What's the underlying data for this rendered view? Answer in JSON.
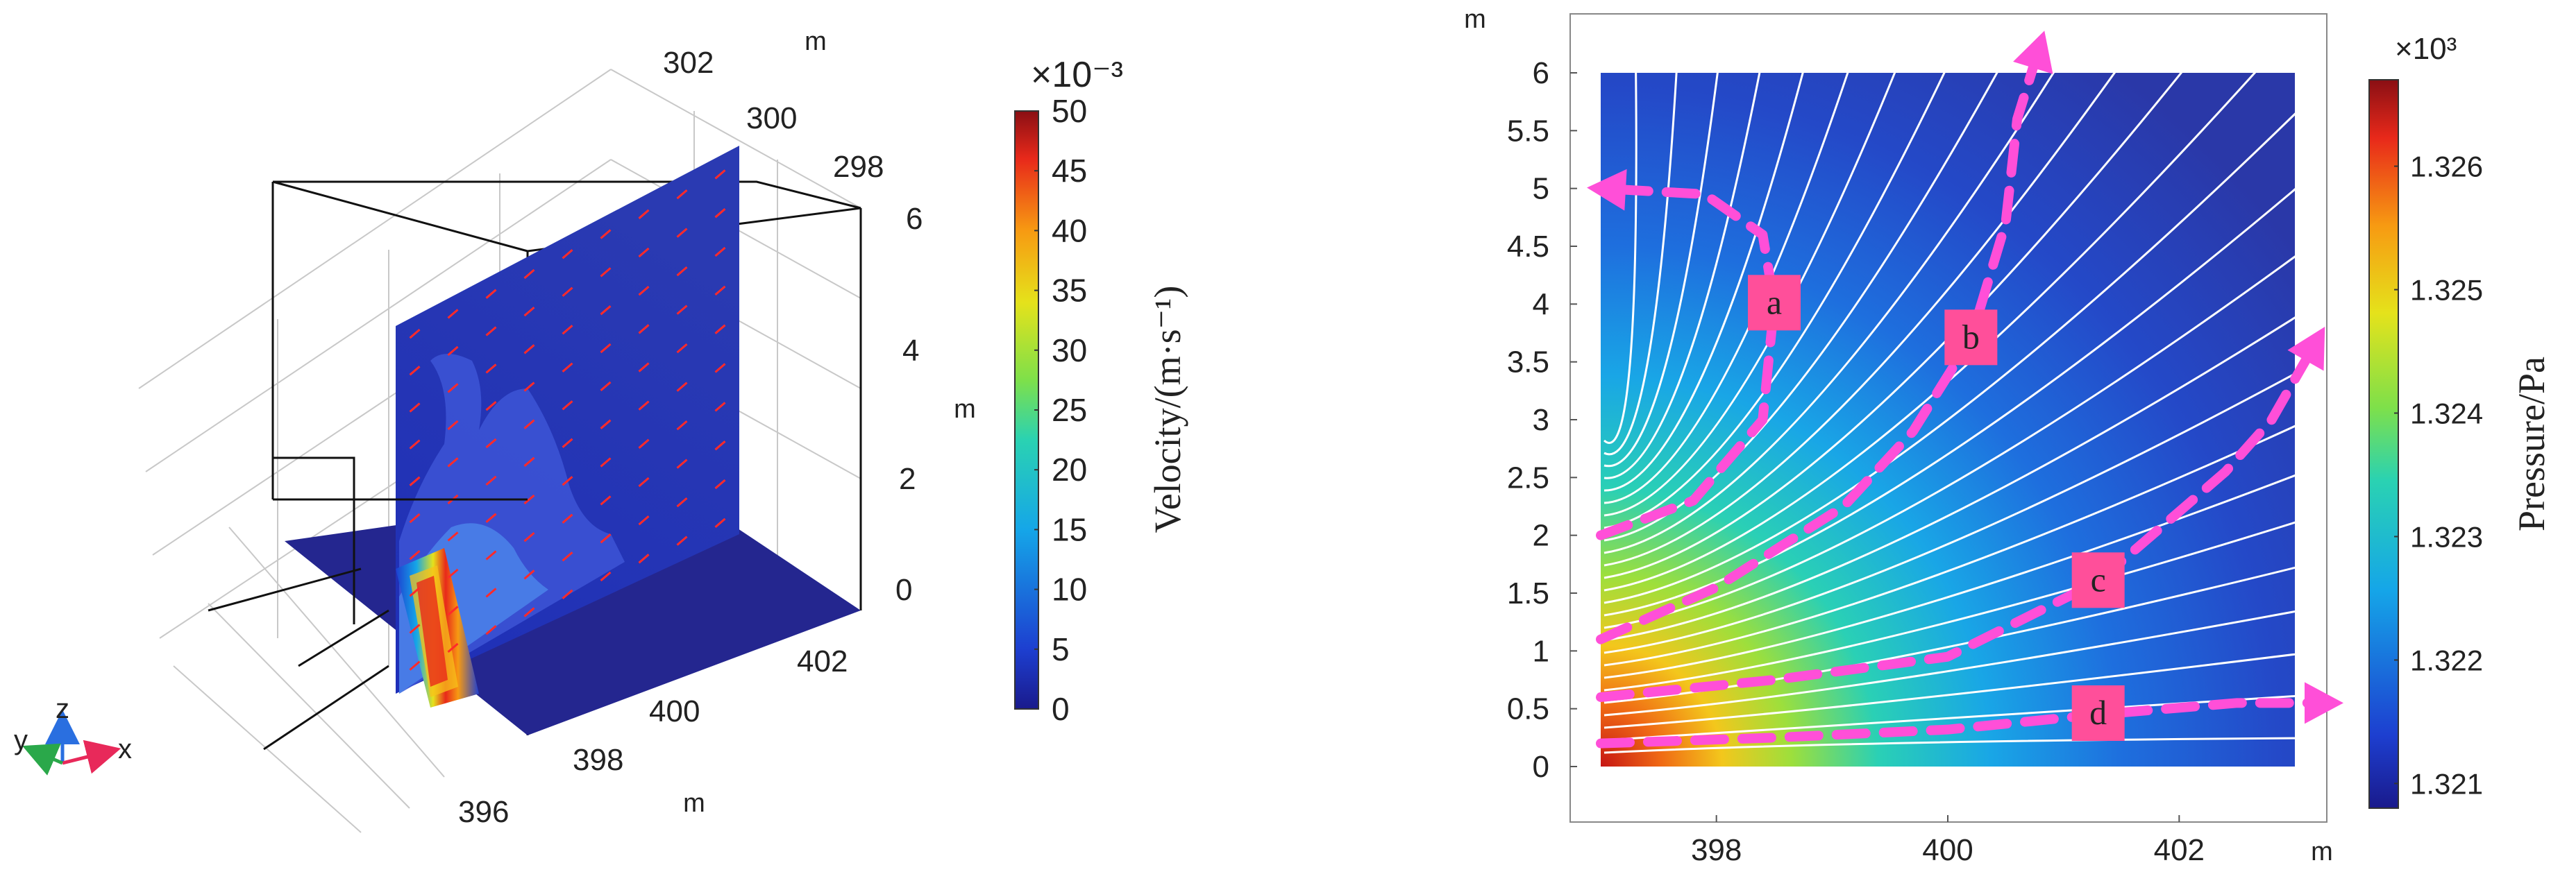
{
  "chart_data": [
    {
      "type": "3d-slice",
      "title": "",
      "x_axis": {
        "unit": "m",
        "ticks": [
          "396",
          "398",
          "400",
          "402"
        ]
      },
      "y_axis": {
        "unit": "m",
        "ticks": [
          "298",
          "300",
          "302"
        ]
      },
      "z_axis": {
        "unit": "m",
        "ticks": [
          "0",
          "2",
          "4",
          "6"
        ]
      },
      "colorbar": {
        "label": "Velocity/(m·s⁻¹)",
        "exponent": "×10⁻³",
        "range": [
          0,
          50
        ],
        "ticks": [
          "0",
          "5",
          "10",
          "15",
          "20",
          "25",
          "30",
          "35",
          "40",
          "45",
          "50"
        ]
      },
      "triad": {
        "x": "x",
        "y": "y",
        "z": "z"
      },
      "arrow_color": "#ff2a2a"
    },
    {
      "type": "contour",
      "title": "",
      "x_axis": {
        "unit": "m",
        "range": [
          396.9,
          403.3
        ],
        "ticks": [
          398,
          400,
          402
        ]
      },
      "y_axis": {
        "unit": "m",
        "range": [
          -0.5,
          6.2
        ],
        "ticks": [
          0,
          0.5,
          1,
          1.5,
          2,
          2.5,
          3,
          3.5,
          4,
          4.5,
          5,
          5.5,
          6
        ]
      },
      "colorbar": {
        "label": "Pressure/Pa",
        "exponent": "×10³",
        "range": [
          1.3208,
          1.3267
        ],
        "ticks": [
          "1.321",
          "1.322",
          "1.323",
          "1.324",
          "1.325",
          "1.326"
        ]
      },
      "paths": [
        {
          "label": "a",
          "points": [
            [
              397.0,
              2.0
            ],
            [
              397.8,
              2.3
            ],
            [
              398.4,
              3.0
            ],
            [
              398.5,
              4.0
            ],
            [
              398.4,
              4.6
            ],
            [
              397.9,
              4.95
            ],
            [
              397.0,
              5.0
            ]
          ]
        },
        {
          "label": "b",
          "points": [
            [
              397.0,
              1.1
            ],
            [
              398.0,
              1.55
            ],
            [
              399.1,
              2.25
            ],
            [
              399.7,
              2.9
            ],
            [
              400.2,
              3.7
            ],
            [
              400.5,
              4.7
            ],
            [
              400.6,
              5.6
            ],
            [
              400.8,
              6.25
            ]
          ]
        },
        {
          "label": "c",
          "points": [
            [
              397.0,
              0.6
            ],
            [
              398.5,
              0.75
            ],
            [
              400.0,
              0.95
            ],
            [
              401.3,
              1.6
            ],
            [
              402.4,
              2.55
            ],
            [
              402.8,
              3.0
            ],
            [
              403.2,
              3.7
            ]
          ]
        },
        {
          "label": "d",
          "points": [
            [
              397.0,
              0.2
            ],
            [
              398.5,
              0.25
            ],
            [
              400.0,
              0.32
            ],
            [
              401.3,
              0.45
            ],
            [
              402.5,
              0.55
            ],
            [
              403.3,
              0.55
            ]
          ]
        }
      ],
      "path_color": "#ff4fd8"
    }
  ]
}
